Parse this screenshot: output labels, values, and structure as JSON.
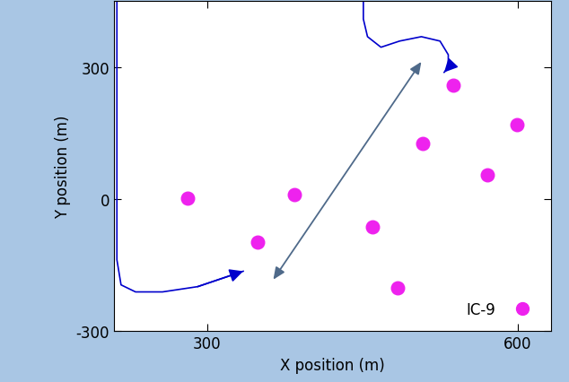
{
  "chart_data": {
    "type": "scatter",
    "x_label": "X position (m)",
    "y_label": "Y position (m)",
    "xlim": [
      210,
      632
    ],
    "ylim": [
      -300,
      450
    ],
    "xticks": [
      300,
      600
    ],
    "yticks": [
      -300,
      0,
      300
    ],
    "legend": "lower right",
    "series": [
      {
        "name": "IC-9",
        "color": "#ee22ee",
        "marker": "circle",
        "x": [
          281,
          349,
          384,
          484,
          508,
          460,
          538,
          571,
          599
        ],
        "values": [
          2,
          -97,
          10,
          -201,
          126,
          -63,
          258,
          55,
          170
        ]
      }
    ],
    "trajectories": [
      {
        "color": "#0000cc",
        "x": [
          213,
          213,
          217,
          231,
          257,
          291,
          335
        ],
        "y": [
          450,
          -138,
          -195,
          -211,
          -211,
          -199,
          -164
        ]
      },
      {
        "color": "#0000cc",
        "x": [
          451,
          451,
          455,
          468,
          486,
          507,
          525,
          533,
          533,
          529
        ],
        "y": [
          450,
          409,
          369,
          345,
          359,
          369,
          359,
          328,
          298,
          288
        ]
      }
    ],
    "double_arrow": {
      "color": "#4f6a8a",
      "x": [
        364,
        507
      ],
      "y": [
        -183,
        312
      ]
    }
  }
}
